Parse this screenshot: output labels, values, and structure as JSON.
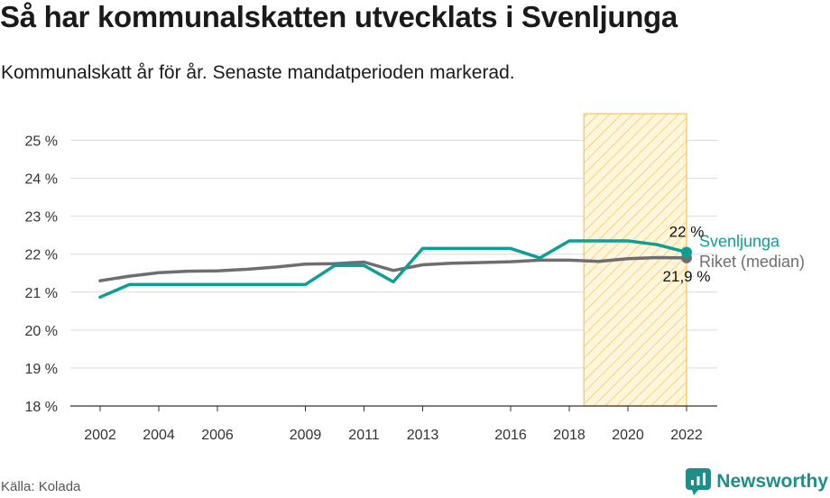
{
  "header": {
    "title": "Så har kommunalskatten utvecklats i Svenljunga",
    "subtitle": "Kommunalskatt år för år. Senaste mandatperioden markerad."
  },
  "footer": {
    "source": "Källa: Kolada",
    "brand": "Newsworthy"
  },
  "colors": {
    "svenljunga": "#0e9e94",
    "riket": "#6e6e72",
    "highlight_fill": "#fff6dc",
    "highlight_stroke": "#f6c760",
    "grid": "#dcdcdc"
  },
  "chart_data": {
    "type": "line",
    "title": "Så har kommunalskatten utvecklats i Svenljunga",
    "subtitle": "Kommunalskatt år för år. Senaste mandatperioden markerad.",
    "xlabel": "",
    "ylabel": "",
    "x": [
      2002,
      2003,
      2004,
      2005,
      2006,
      2007,
      2008,
      2009,
      2010,
      2011,
      2012,
      2013,
      2014,
      2015,
      2016,
      2017,
      2018,
      2019,
      2020,
      2021,
      2022
    ],
    "xlim": [
      2002,
      2022
    ],
    "ylim": [
      18,
      25.7
    ],
    "x_ticks": [
      2002,
      2004,
      2006,
      2009,
      2011,
      2013,
      2016,
      2018,
      2020,
      2022
    ],
    "x_tick_labels": [
      "2002",
      "2004",
      "2006",
      "2009",
      "2011",
      "2013",
      "2016",
      "2018",
      "2020",
      "2022"
    ],
    "y_ticks": [
      18,
      19,
      20,
      21,
      22,
      23,
      24,
      25
    ],
    "y_tick_labels": [
      "18 %",
      "19 %",
      "20 %",
      "21 %",
      "22 %",
      "23 %",
      "24 %",
      "25 %"
    ],
    "grid": true,
    "highlight": {
      "label": "Senaste mandatperioden",
      "from": 2018.5,
      "to": 2022
    },
    "series": [
      {
        "name": "Svenljunga",
        "key": "svenljunga",
        "values": [
          20.87,
          21.2,
          21.2,
          21.2,
          21.2,
          21.2,
          21.2,
          21.2,
          21.7,
          21.7,
          21.27,
          22.15,
          22.15,
          22.15,
          22.15,
          21.9,
          22.35,
          22.35,
          22.35,
          22.25,
          22.05
        ],
        "end_label": "22 %"
      },
      {
        "name": "Riket (median)",
        "key": "riket",
        "values": [
          21.3,
          21.42,
          21.51,
          21.55,
          21.56,
          21.6,
          21.66,
          21.74,
          21.75,
          21.79,
          21.57,
          21.72,
          21.76,
          21.78,
          21.8,
          21.84,
          21.84,
          21.81,
          21.88,
          21.91,
          21.9
        ],
        "end_label": "21,9 %"
      }
    ]
  }
}
